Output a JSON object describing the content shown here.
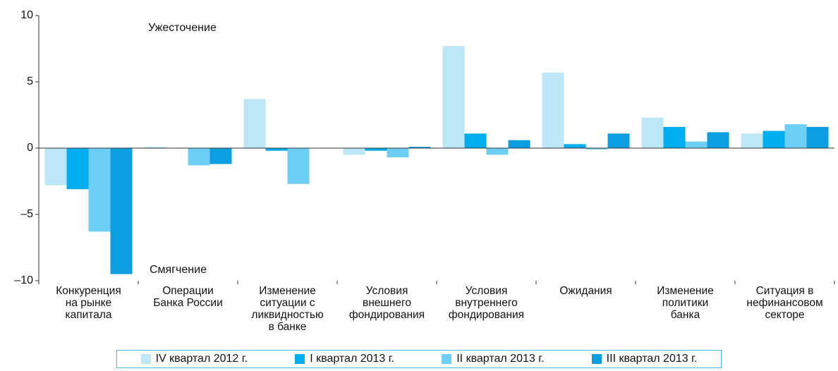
{
  "chart_data": {
    "type": "bar",
    "annotations": [
      "Ужесточение",
      "Смягчение"
    ],
    "categories": [
      "Конкуренция\nна рынке\nкапитала",
      "Операции\nБанка России",
      "Изменение\nситуации с\nликвидностью\nв банке",
      "Условия\nвнешнего\nфондирования",
      "Условия\nвнутреннего\nфондирования",
      "Ожидания",
      "Изменение\nполитики\nбанка",
      "Ситуация в\nнефинансовом\nсекторе"
    ],
    "series": [
      {
        "name": "IV квартал 2012 г.",
        "color": "#bde6f7",
        "values": [
          -2.8,
          0.1,
          3.7,
          -0.5,
          7.7,
          5.7,
          2.3,
          1.1
        ]
      },
      {
        "name": "I квартал 2013 г.",
        "color": "#00aeef",
        "values": [
          -3.1,
          0,
          -0.2,
          -0.2,
          1.1,
          0.3,
          1.6,
          1.3
        ]
      },
      {
        "name": "II квартал 2013 г.",
        "color": "#6dcff6",
        "values": [
          -6.3,
          -1.3,
          -2.7,
          -0.7,
          -0.5,
          -0.1,
          0.5,
          1.8
        ]
      },
      {
        "name": "III квартал 2013 г.",
        "color": "#0c9ee0",
        "values": [
          -9.5,
          -1.2,
          0,
          0.1,
          0.6,
          1.1,
          1.2,
          1.6
        ]
      }
    ],
    "ylim": [
      -10,
      10
    ],
    "yticks": [
      {
        "value": -10,
        "label": "–10"
      },
      {
        "value": -5,
        "label": "–5"
      },
      0,
      5,
      10
    ]
  }
}
